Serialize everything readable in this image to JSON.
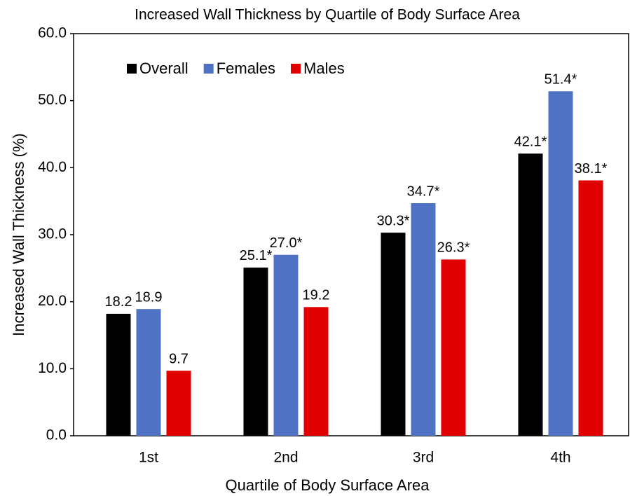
{
  "chart_data": {
    "type": "bar",
    "title": "Increased Wall Thickness by Quartile of Body Surface Area",
    "x_label": "Quartile of Body Surface Area",
    "y_label": "Increased Wall Thickness (%)",
    "categories": [
      "1st",
      "2nd",
      "3rd",
      "4th"
    ],
    "series": [
      {
        "name": "Overall",
        "color": "#000000",
        "values": [
          18.2,
          25.1,
          30.3,
          42.1
        ],
        "value_labels": [
          "18.2",
          "25.1*",
          "30.3*",
          "42.1*"
        ]
      },
      {
        "name": "Females",
        "color": "#4f72c4",
        "values": [
          18.9,
          27.0,
          34.7,
          51.4
        ],
        "value_labels": [
          "18.9",
          "27.0*",
          "34.7*",
          "51.4*"
        ]
      },
      {
        "name": "Males",
        "color": "#e00000",
        "values": [
          9.7,
          19.2,
          26.3,
          38.1
        ],
        "value_labels": [
          "9.7",
          "19.2",
          "26.3*",
          "38.1*"
        ]
      }
    ],
    "ylim": [
      0,
      60
    ],
    "yticks": [
      {
        "value": 0,
        "label": "0.0"
      },
      {
        "value": 10,
        "label": "10.0"
      },
      {
        "value": 20,
        "label": "20.0"
      },
      {
        "value": 30,
        "label": "30.0"
      },
      {
        "value": 40,
        "label": "40.0"
      },
      {
        "value": 50,
        "label": "50.0"
      },
      {
        "value": 60,
        "label": "60.0"
      }
    ],
    "legend": "upper left",
    "grid": false
  }
}
